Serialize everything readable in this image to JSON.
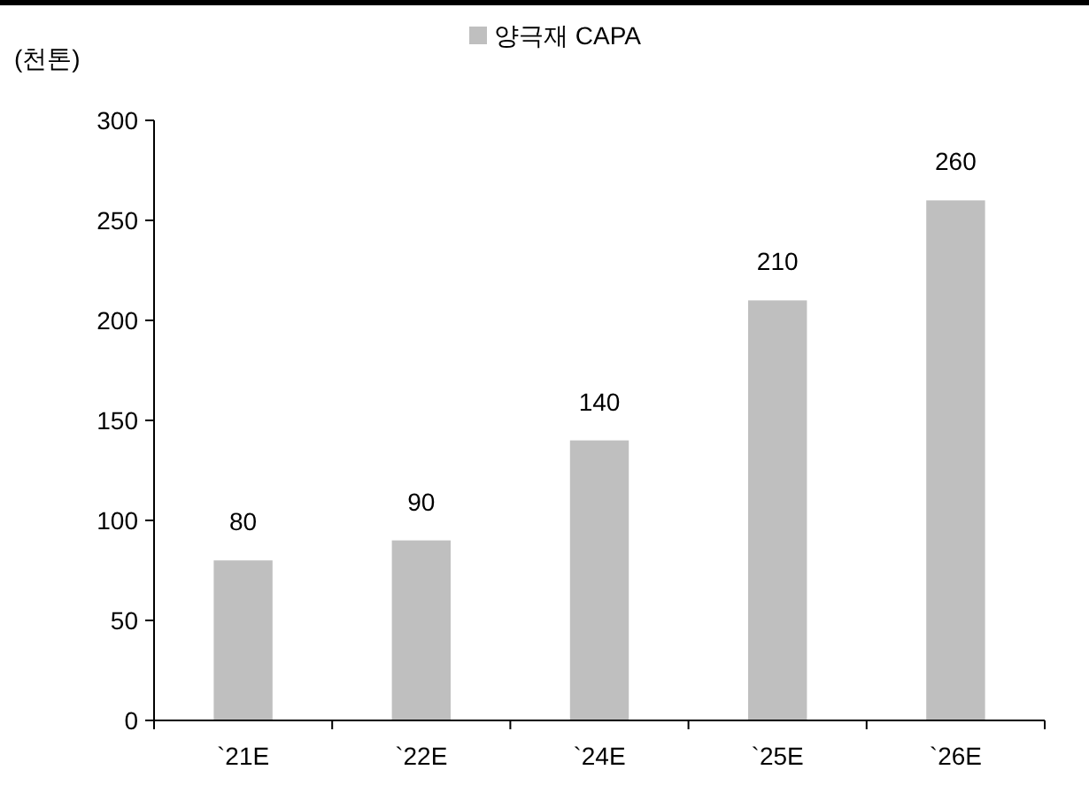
{
  "chart_data": {
    "type": "bar",
    "ylabel": "(천톤)",
    "categories": [
      "`21E",
      "`22E",
      "`24E",
      "`25E",
      "`26E"
    ],
    "series": [
      {
        "name": "양극재 CAPA",
        "color": "#bfbfbf",
        "values": [
          80,
          90,
          140,
          210,
          260
        ]
      }
    ],
    "ylim": [
      0,
      300
    ],
    "yticks": [
      0,
      50,
      100,
      150,
      200,
      250,
      300
    ],
    "data_labels": true,
    "legend": "top",
    "grid": false
  }
}
